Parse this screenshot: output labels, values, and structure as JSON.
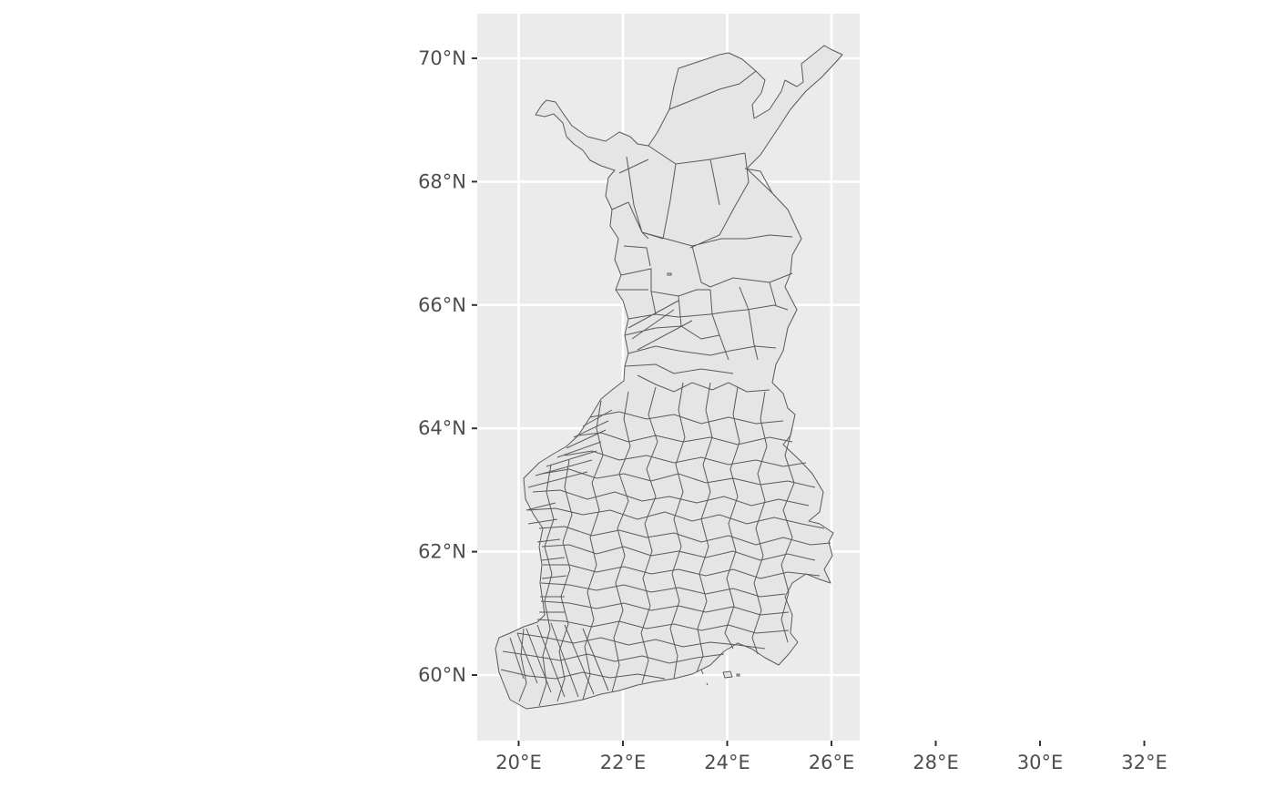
{
  "map": {
    "type": "choropleth",
    "region": "Finland municipalities",
    "fill_color": "#e5e5e5",
    "border_color": "#595959",
    "panel_background": "#ebebeb",
    "grid": true,
    "x_axis": {
      "ticks": [
        {
          "value": 20,
          "label": "20°E"
        },
        {
          "value": 22,
          "label": "22°E"
        },
        {
          "value": 24,
          "label": "24°E"
        },
        {
          "value": 26,
          "label": "26°E"
        },
        {
          "value": 28,
          "label": "28°E"
        },
        {
          "value": 30,
          "label": "30°E"
        },
        {
          "value": 32,
          "label": "32°E"
        }
      ],
      "range": [
        18.4,
        33.1
      ]
    },
    "y_axis": {
      "ticks": [
        {
          "value": 60,
          "label": "60°N"
        },
        {
          "value": 62,
          "label": "62°N"
        },
        {
          "value": 64,
          "label": "64°N"
        },
        {
          "value": 66,
          "label": "66°N"
        },
        {
          "value": 68,
          "label": "68°N"
        },
        {
          "value": 70,
          "label": "70°N"
        }
      ],
      "range": [
        59.0,
        70.7
      ]
    }
  }
}
